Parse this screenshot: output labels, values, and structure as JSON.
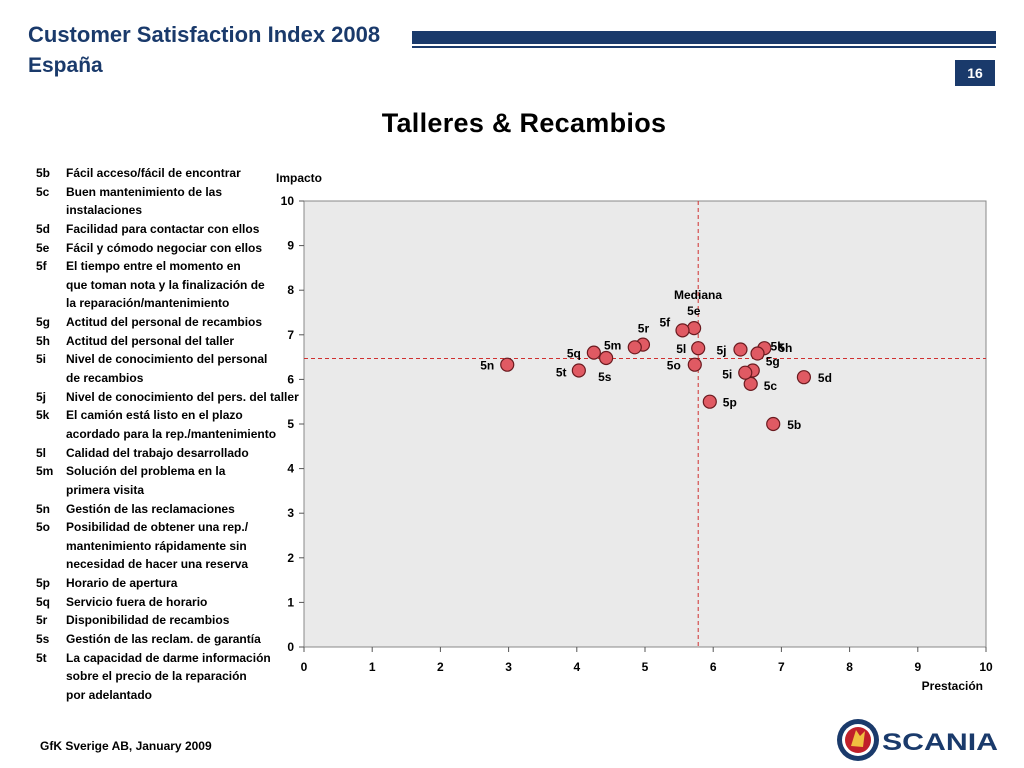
{
  "header": {
    "title": "Customer Satisfaction Index 2008",
    "subtitle": "España",
    "page_number": "16"
  },
  "legend": [
    {
      "code": "5b",
      "lines": [
        "Fácil acceso/fácil de encontrar"
      ]
    },
    {
      "code": "5c",
      "lines": [
        "Buen mantenimiento de las",
        "instalaciones"
      ]
    },
    {
      "code": "5d",
      "lines": [
        "Facilidad para contactar con ellos"
      ]
    },
    {
      "code": "5e",
      "lines": [
        "Fácil y cómodo negociar con ellos"
      ]
    },
    {
      "code": "5f",
      "lines": [
        "El tiempo entre el momento en",
        "que toman nota y la finalización de",
        "la reparación/mantenimiento"
      ]
    },
    {
      "code": "5g",
      "lines": [
        "Actitud del personal de recambios"
      ]
    },
    {
      "code": "5h",
      "lines": [
        "Actitud del personal del taller"
      ]
    },
    {
      "code": "5i",
      "lines": [
        "Nivel de conocimiento del personal",
        "de recambios"
      ]
    },
    {
      "code": "5j",
      "lines": [
        "Nivel de conocimiento del pers. del taller"
      ]
    },
    {
      "code": "5k",
      "lines": [
        "El camión está listo en el plazo",
        "acordado para la rep./mantenimiento"
      ]
    },
    {
      "code": "5l",
      "lines": [
        "Calidad del trabajo desarrollado"
      ]
    },
    {
      "code": "5m",
      "lines": [
        "Solución del problema en la",
        "primera visita"
      ]
    },
    {
      "code": "5n",
      "lines": [
        "Gestión de las reclamaciones"
      ]
    },
    {
      "code": "5o",
      "lines": [
        "Posibilidad de obtener una rep./",
        "mantenimiento rápidamente sin",
        "necesidad de hacer una reserva"
      ]
    },
    {
      "code": "5p",
      "lines": [
        "Horario de apertura"
      ]
    },
    {
      "code": "5q",
      "lines": [
        "Servicio fuera de horario"
      ]
    },
    {
      "code": "5r",
      "lines": [
        "Disponibilidad de recambios"
      ]
    },
    {
      "code": "5s",
      "lines": [
        "Gestión de las reclam. de garantía"
      ]
    },
    {
      "code": "5t",
      "lines": [
        "La capacidad de darme información",
        "sobre el precio de la reparación",
        "por adelantado"
      ]
    }
  ],
  "chart_data": {
    "type": "scatter",
    "title": "Talleres & Recambios",
    "xlabel": "Prestación",
    "ylabel": "Impacto",
    "xlim": [
      0,
      10
    ],
    "ylim": [
      0,
      10
    ],
    "xticks": [
      "0",
      "1",
      "2",
      "3",
      "4",
      "5",
      "6",
      "7",
      "8",
      "9",
      "10"
    ],
    "yticks": [
      "0",
      "1",
      "2",
      "3",
      "4",
      "5",
      "6",
      "7",
      "8",
      "9",
      "10"
    ],
    "grid": false,
    "median_label": "Mediana",
    "median_x": 5.78,
    "median_y": 6.47,
    "point_color": "#e05a63",
    "points": [
      {
        "label": "5b",
        "x": 6.88,
        "y": 5.0
      },
      {
        "label": "5c",
        "x": 6.55,
        "y": 5.9
      },
      {
        "label": "5d",
        "x": 7.33,
        "y": 6.05
      },
      {
        "label": "5e",
        "x": 5.72,
        "y": 7.15
      },
      {
        "label": "5f",
        "x": 5.55,
        "y": 7.1
      },
      {
        "label": "5g",
        "x": 6.58,
        "y": 6.2
      },
      {
        "label": "5h",
        "x": 6.75,
        "y": 6.7
      },
      {
        "label": "5i",
        "x": 6.47,
        "y": 6.15
      },
      {
        "label": "5j",
        "x": 6.4,
        "y": 6.67
      },
      {
        "label": "5k",
        "x": 6.65,
        "y": 6.58
      },
      {
        "label": "5l",
        "x": 5.78,
        "y": 6.7
      },
      {
        "label": "5m",
        "x": 4.97,
        "y": 6.78
      },
      {
        "label": "5n",
        "x": 2.98,
        "y": 6.33
      },
      {
        "label": "5o",
        "x": 5.73,
        "y": 6.33
      },
      {
        "label": "5p",
        "x": 5.95,
        "y": 5.5
      },
      {
        "label": "5q",
        "x": 4.25,
        "y": 6.6
      },
      {
        "label": "5r",
        "x": 4.85,
        "y": 6.72
      },
      {
        "label": "5s",
        "x": 4.43,
        "y": 6.48
      },
      {
        "label": "5t",
        "x": 4.03,
        "y": 6.2
      }
    ]
  },
  "footer": {
    "source": "GfK Sverige AB, January 2009",
    "brand": "SCANIA"
  }
}
